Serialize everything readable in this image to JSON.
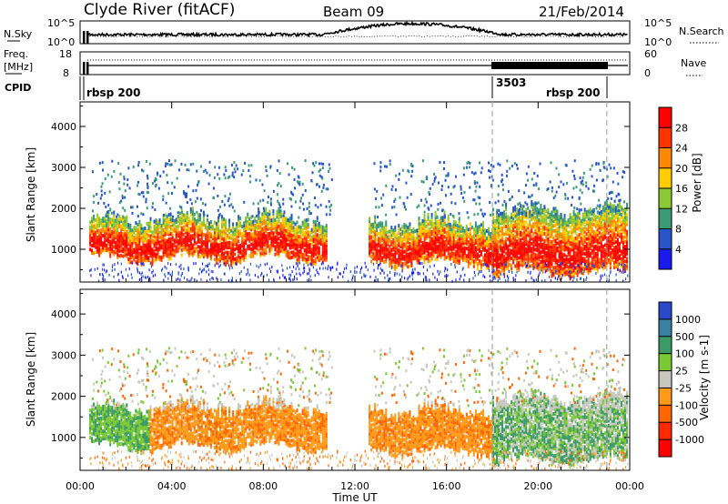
{
  "header": {
    "station": "Clyde River (fitACF)",
    "beam": "Beam 09",
    "date": "21/Feb/2014"
  },
  "nsky_panel": {
    "left_label": "N.Sky",
    "left_ticks": [
      "10^5",
      "10^0"
    ],
    "right_label": "N.Search",
    "right_ticks": [
      "10^5",
      "10^0"
    ]
  },
  "freq_panel": {
    "left_label_top": "Freq.",
    "left_label_unit": "[MHz]",
    "left_ticks": [
      "18",
      "8"
    ],
    "right_label": "Nave",
    "right_ticks": [
      "60",
      "0"
    ]
  },
  "cpid_panel": {
    "label": "CPID",
    "segments": [
      {
        "text": "rbsp 200",
        "start_hr": 0.1,
        "end_hr": 18.0
      },
      {
        "text": "3503",
        "start_hr": 18.0,
        "end_hr": 23.0
      },
      {
        "text": "rbsp 200",
        "start_hr": 23.0,
        "end_hr": 24.0
      }
    ]
  },
  "chart_data": [
    {
      "type": "heatmap",
      "name": "power",
      "ylabel": "Slant Range [km]",
      "yticks": [
        "1000",
        "2000",
        "3000",
        "4000"
      ],
      "ylim": [
        200,
        4600
      ],
      "colorbar_label": "Power [dB]",
      "colorbar_ticks": [
        "4",
        "8",
        "12",
        "16",
        "20",
        "24",
        "28"
      ],
      "colorbar_range": [
        0,
        32
      ],
      "colors": [
        "#1a1af0",
        "#2855c8",
        "#3c9a78",
        "#8cc832",
        "#ffcc00",
        "#ff8800",
        "#ff3300",
        "#ff0000"
      ]
    },
    {
      "type": "heatmap",
      "name": "velocity",
      "ylabel": "Slant Range [km]",
      "yticks": [
        "1000",
        "2000",
        "3000",
        "4000"
      ],
      "ylim": [
        200,
        4600
      ],
      "colorbar_label": "Velocity [m s-1]",
      "colorbar_ticks": [
        "1000",
        "500",
        "100",
        "25",
        "-25",
        "-100",
        "-500",
        "-1000"
      ],
      "colors": [
        "#2a48c8",
        "#3a80a0",
        "#3c9a64",
        "#7ac832",
        "#c8c8c0",
        "#ff9a1a",
        "#ff6600",
        "#ff2a00",
        "#ff0000"
      ]
    }
  ],
  "xaxis": {
    "label": "Time UT",
    "ticks": [
      "00:00",
      "04:00",
      "08:00",
      "12:00",
      "16:00",
      "20:00",
      "00:00"
    ],
    "range_hr": [
      0,
      24
    ]
  }
}
